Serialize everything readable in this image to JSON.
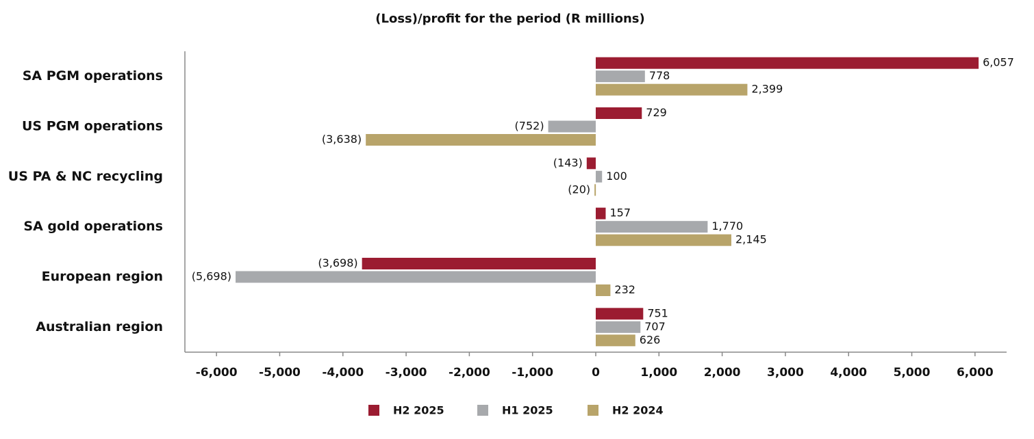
{
  "chart_data": {
    "type": "hbar",
    "title": "(Loss)/profit for the period (R millions)",
    "categories": [
      "SA PGM operations",
      "US PGM operations",
      "US PA & NC recycling",
      "SA gold operations",
      "European region",
      "Australian region"
    ],
    "series": [
      {
        "name": "H2 2025",
        "color": "#9b1c31",
        "values": [
          6057,
          729,
          -143,
          157,
          -3698,
          751
        ],
        "value_labels": [
          "6,057",
          "729",
          "(143)",
          "157",
          "(3,698)",
          "751"
        ]
      },
      {
        "name": "H1 2025",
        "color": "#a7a9ac",
        "values": [
          778,
          -752,
          100,
          1770,
          -5698,
          707
        ],
        "value_labels": [
          "778",
          "(752)",
          "100",
          "1,770",
          "(5,698)",
          "707"
        ]
      },
      {
        "name": "H2 2024",
        "color": "#b8a46a",
        "values": [
          2399,
          -3638,
          -20,
          2145,
          232,
          626
        ],
        "value_labels": [
          "2,399",
          "(3,638)",
          "(20)",
          "2,145",
          "232",
          "626"
        ]
      }
    ],
    "xlim": [
      -6500,
      6500
    ],
    "xticks": [
      {
        "value": -6000,
        "label": "-6,000"
      },
      {
        "value": -5000,
        "label": "-5,000"
      },
      {
        "value": -4000,
        "label": "-4,000"
      },
      {
        "value": -3000,
        "label": "-3,000"
      },
      {
        "value": -2000,
        "label": "-2,000"
      },
      {
        "value": -1000,
        "label": "-1,000"
      },
      0,
      {
        "value": 1000,
        "label": "1,000"
      },
      {
        "value": 2000,
        "label": "2,000"
      },
      {
        "value": 3000,
        "label": "3,000"
      },
      {
        "value": 4000,
        "label": "4,000"
      },
      {
        "value": 5000,
        "label": "5,000"
      },
      {
        "value": 6000,
        "label": "6,000"
      }
    ],
    "grid": false,
    "legend": "bottom"
  }
}
